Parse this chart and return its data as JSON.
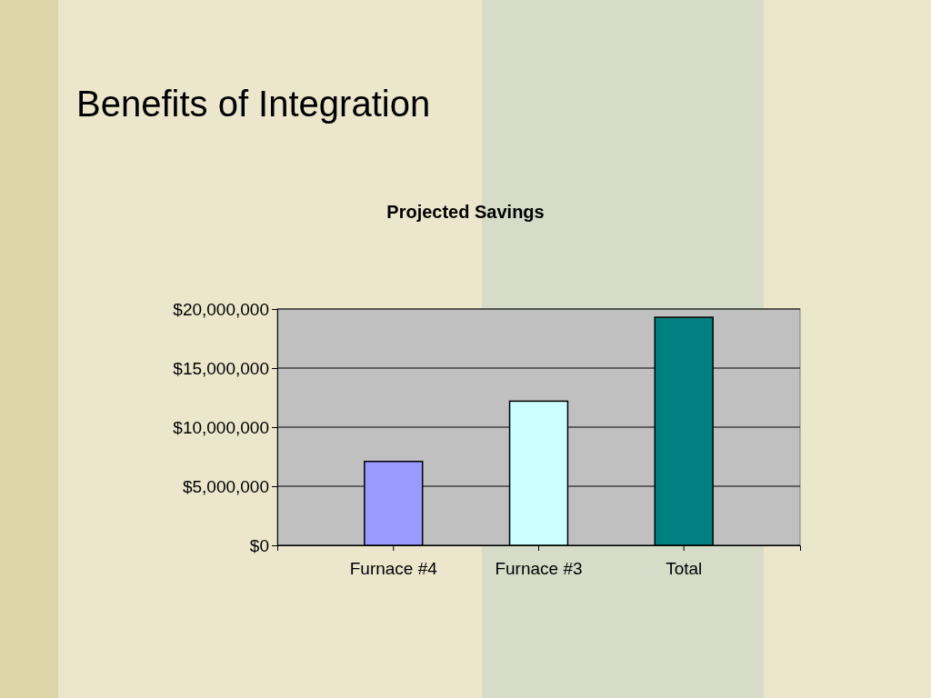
{
  "chart_data": {
    "type": "bar",
    "title": "Benefits of Integration",
    "subtitle": "Projected Savings",
    "categories": [
      "Furnace #4",
      "Furnace #3",
      "Total"
    ],
    "values": [
      7100000,
      12200000,
      19300000
    ],
    "colors": [
      "#9999ff",
      "#ccffff",
      "#008080"
    ],
    "ylim": [
      0,
      20000000
    ],
    "yticks": [
      {
        "value": 0,
        "label": "$0"
      },
      {
        "value": 5000000,
        "label": "$5,000,000"
      },
      {
        "value": 10000000,
        "label": "$10,000,000"
      },
      {
        "value": 15000000,
        "label": "$15,000,000"
      },
      {
        "value": 20000000,
        "label": "$20,000,000"
      }
    ],
    "grid": "y"
  }
}
